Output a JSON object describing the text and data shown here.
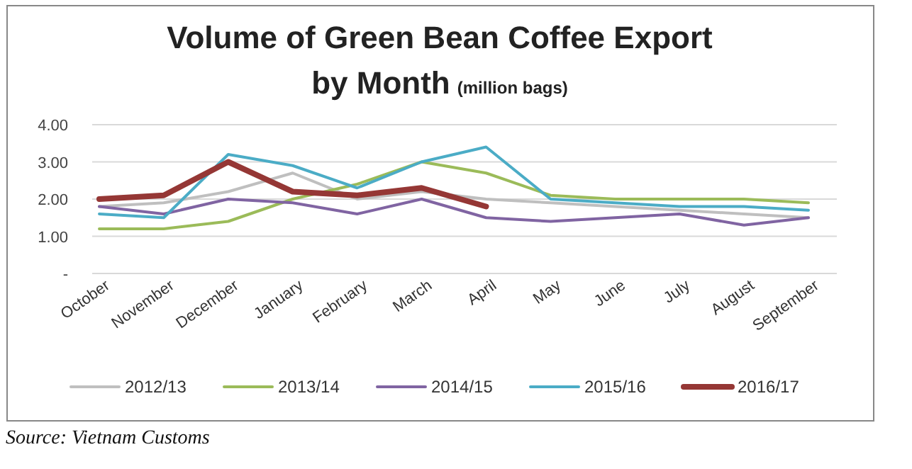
{
  "chart_data": {
    "type": "line",
    "title": "Volume of Green Bean Coffee Export by Month",
    "subtitle": "(million bags)",
    "categories": [
      "October",
      "November",
      "December",
      "January",
      "February",
      "March",
      "April",
      "May",
      "June",
      "July",
      "August",
      "September"
    ],
    "series": [
      {
        "name": "2012/13",
        "color": "#bfbfbf",
        "values": [
          1.8,
          1.9,
          2.2,
          2.7,
          2.0,
          2.2,
          2.0,
          1.9,
          1.8,
          1.7,
          1.6,
          1.5
        ]
      },
      {
        "name": "2013/14",
        "color": "#9bbb59",
        "values": [
          1.2,
          1.2,
          1.4,
          2.0,
          2.4,
          3.0,
          2.7,
          2.1,
          2.0,
          2.0,
          2.0,
          1.9
        ]
      },
      {
        "name": "2014/15",
        "color": "#8064a2",
        "values": [
          1.8,
          1.6,
          2.0,
          1.9,
          1.6,
          2.0,
          1.5,
          1.4,
          1.5,
          1.6,
          1.3,
          1.5
        ]
      },
      {
        "name": "2015/16",
        "color": "#4bacc6",
        "values": [
          1.6,
          1.5,
          3.2,
          2.9,
          2.3,
          3.0,
          3.4,
          2.0,
          1.9,
          1.8,
          1.8,
          1.7
        ]
      },
      {
        "name": "2016/17",
        "color": "#953735",
        "values": [
          2.0,
          2.1,
          3.0,
          2.2,
          2.1,
          2.3,
          1.8,
          null,
          null,
          null,
          null,
          null
        ]
      }
    ],
    "ylim": [
      0,
      4
    ],
    "yticks": [
      {
        "value": 0,
        "label": "-"
      },
      {
        "value": 1,
        "label": "1.00"
      },
      {
        "value": 2,
        "label": "2.00"
      },
      {
        "value": 3,
        "label": "3.00"
      },
      {
        "value": 4,
        "label": "4.00"
      }
    ],
    "grid": "y",
    "legend": "bottom",
    "marker": "none",
    "line_style": "solid",
    "annotations": [
      "Source: Vietnam Customs"
    ]
  }
}
